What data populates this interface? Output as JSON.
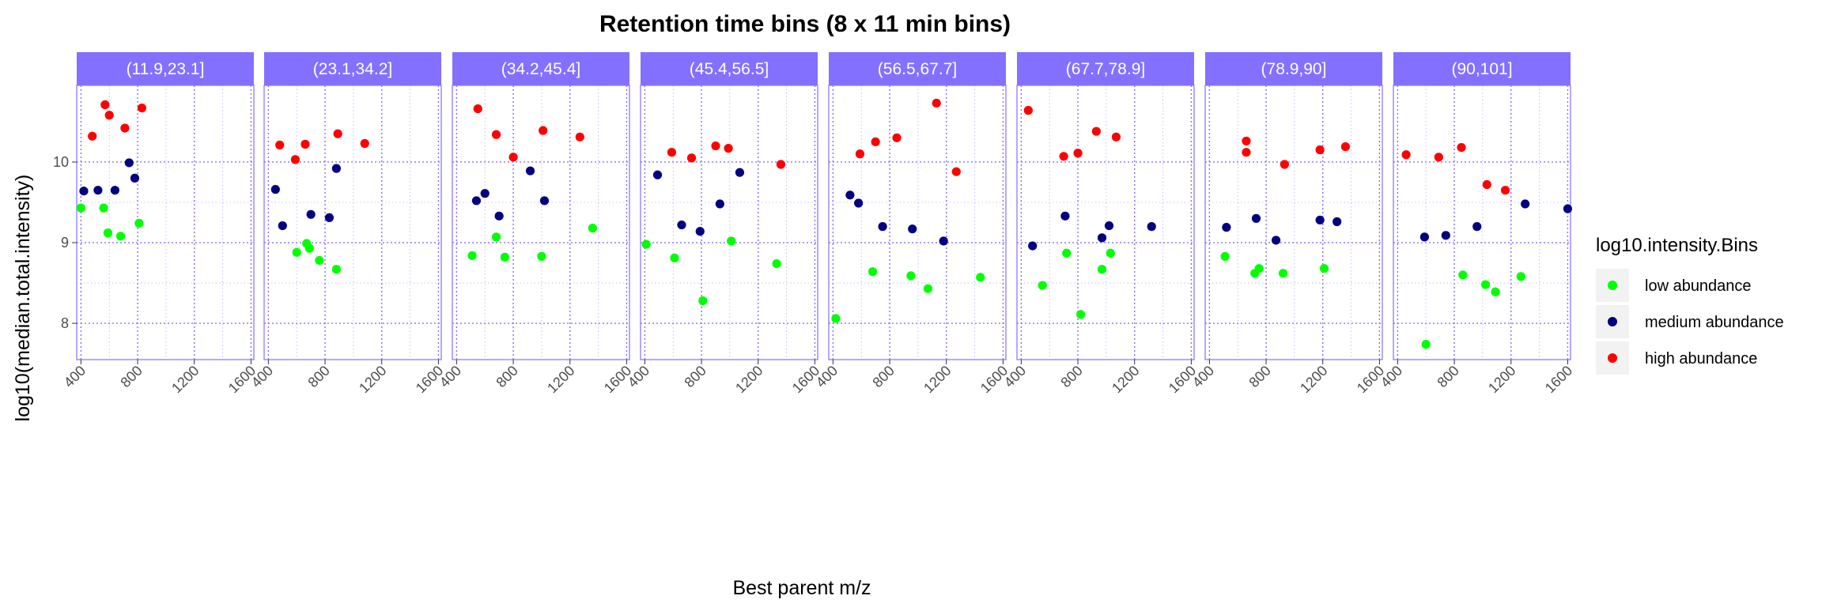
{
  "chart_data": {
    "type": "scatter",
    "title": "Retention time bins (8 x 11 min bins)",
    "xlabel": "Best parent m/z",
    "ylabel": "log10(median.total.intensity)",
    "xlim": [
      370,
      1620
    ],
    "ylim": [
      7.55,
      10.95
    ],
    "x_ticks": [
      400,
      800,
      1200,
      1600
    ],
    "x_tick_labels": [
      "400",
      "800",
      "1200",
      "1600"
    ],
    "y_ticks": [
      8,
      9,
      10
    ],
    "y_tick_labels": [
      "8",
      "9",
      "10"
    ],
    "grid": true,
    "panel_style": {
      "strip_fill": "#8470ff",
      "border_color": "#8470ff",
      "grid_color": "#8470ff",
      "grid_style": "dotted"
    },
    "legend": {
      "title": "log10.intensity.Bins",
      "position": "right",
      "entries": [
        {
          "label": "low abundance",
          "color": "#00ff00"
        },
        {
          "label": "medium abundance",
          "color": "#000080"
        },
        {
          "label": "high abundance",
          "color": "#ff0000"
        }
      ]
    },
    "series_colors": {
      "low": "#00ff00",
      "medium": "#000080",
      "high": "#ff0000"
    },
    "facets": [
      {
        "label": "(11.9,23.1]",
        "low": [
          [
            400,
            9.43
          ],
          [
            560,
            9.43
          ],
          [
            590,
            9.12
          ],
          [
            680,
            9.08
          ],
          [
            810,
            9.24
          ]
        ],
        "medium": [
          [
            420,
            9.64
          ],
          [
            520,
            9.65
          ],
          [
            640,
            9.65
          ],
          [
            740,
            9.99
          ],
          [
            780,
            9.8
          ]
        ],
        "high": [
          [
            480,
            10.32
          ],
          [
            570,
            10.71
          ],
          [
            600,
            10.58
          ],
          [
            710,
            10.42
          ],
          [
            830,
            10.67
          ]
        ]
      },
      {
        "label": "(23.1,34.2]",
        "low": [
          [
            600,
            8.88
          ],
          [
            670,
            8.99
          ],
          [
            690,
            8.93
          ],
          [
            760,
            8.78
          ],
          [
            880,
            8.67
          ]
        ],
        "medium": [
          [
            450,
            9.66
          ],
          [
            500,
            9.21
          ],
          [
            700,
            9.35
          ],
          [
            830,
            9.31
          ],
          [
            880,
            9.92
          ]
        ],
        "high": [
          [
            480,
            10.21
          ],
          [
            590,
            10.03
          ],
          [
            660,
            10.22
          ],
          [
            890,
            10.35
          ],
          [
            1080,
            10.23
          ]
        ]
      },
      {
        "label": "(34.2,45.4]",
        "low": [
          [
            510,
            8.84
          ],
          [
            680,
            9.07
          ],
          [
            740,
            8.82
          ],
          [
            1000,
            8.83
          ],
          [
            1360,
            9.18
          ]
        ],
        "medium": [
          [
            540,
            9.52
          ],
          [
            600,
            9.61
          ],
          [
            700,
            9.33
          ],
          [
            920,
            9.89
          ],
          [
            1020,
            9.52
          ]
        ],
        "high": [
          [
            550,
            10.66
          ],
          [
            680,
            10.34
          ],
          [
            800,
            10.06
          ],
          [
            1010,
            10.39
          ],
          [
            1270,
            10.31
          ]
        ]
      },
      {
        "label": "(45.4,56.5]",
        "low": [
          [
            410,
            8.98
          ],
          [
            610,
            8.81
          ],
          [
            810,
            8.28
          ],
          [
            1010,
            9.02
          ],
          [
            1330,
            8.74
          ]
        ],
        "medium": [
          [
            490,
            9.84
          ],
          [
            660,
            9.22
          ],
          [
            790,
            9.14
          ],
          [
            930,
            9.48
          ],
          [
            1070,
            9.87
          ]
        ],
        "high": [
          [
            590,
            10.12
          ],
          [
            730,
            10.05
          ],
          [
            900,
            10.2
          ],
          [
            990,
            10.17
          ],
          [
            1360,
            9.97
          ]
        ]
      },
      {
        "label": "(56.5,67.7]",
        "low": [
          [
            420,
            8.06
          ],
          [
            680,
            8.64
          ],
          [
            950,
            8.59
          ],
          [
            1070,
            8.43
          ],
          [
            1440,
            8.57
          ]
        ],
        "medium": [
          [
            520,
            9.59
          ],
          [
            580,
            9.49
          ],
          [
            750,
            9.2
          ],
          [
            960,
            9.17
          ],
          [
            1180,
            9.02
          ]
        ],
        "high": [
          [
            590,
            10.1
          ],
          [
            700,
            10.25
          ],
          [
            850,
            10.3
          ],
          [
            1130,
            10.73
          ],
          [
            1270,
            9.88
          ]
        ]
      },
      {
        "label": "(67.7,78.9]",
        "low": [
          [
            550,
            8.47
          ],
          [
            720,
            8.87
          ],
          [
            820,
            8.11
          ],
          [
            970,
            8.67
          ],
          [
            1030,
            8.87
          ]
        ],
        "medium": [
          [
            480,
            8.96
          ],
          [
            710,
            9.33
          ],
          [
            970,
            9.06
          ],
          [
            1020,
            9.21
          ],
          [
            1320,
            9.2
          ]
        ],
        "high": [
          [
            450,
            10.64
          ],
          [
            700,
            10.07
          ],
          [
            800,
            10.11
          ],
          [
            930,
            10.38
          ],
          [
            1070,
            10.31
          ]
        ]
      },
      {
        "label": "(78.9,90]",
        "low": [
          [
            510,
            8.83
          ],
          [
            720,
            8.62
          ],
          [
            750,
            8.68
          ],
          [
            920,
            8.62
          ],
          [
            1210,
            8.68
          ]
        ],
        "medium": [
          [
            520,
            9.19
          ],
          [
            730,
            9.3
          ],
          [
            870,
            9.03
          ],
          [
            1180,
            9.28
          ],
          [
            1300,
            9.26
          ]
        ],
        "high": [
          [
            660,
            10.26
          ],
          [
            660,
            10.12
          ],
          [
            930,
            9.97
          ],
          [
            1180,
            10.15
          ],
          [
            1360,
            10.19
          ]
        ]
      },
      {
        "label": "(90,101]",
        "low": [
          [
            600,
            7.74
          ],
          [
            860,
            8.6
          ],
          [
            1020,
            8.48
          ],
          [
            1090,
            8.39
          ],
          [
            1270,
            8.58
          ]
        ],
        "medium": [
          [
            590,
            9.07
          ],
          [
            740,
            9.09
          ],
          [
            960,
            9.2
          ],
          [
            1300,
            9.48
          ],
          [
            1600,
            9.42
          ]
        ],
        "high": [
          [
            460,
            10.09
          ],
          [
            690,
            10.06
          ],
          [
            850,
            10.18
          ],
          [
            1030,
            9.72
          ],
          [
            1160,
            9.65
          ]
        ]
      }
    ]
  }
}
